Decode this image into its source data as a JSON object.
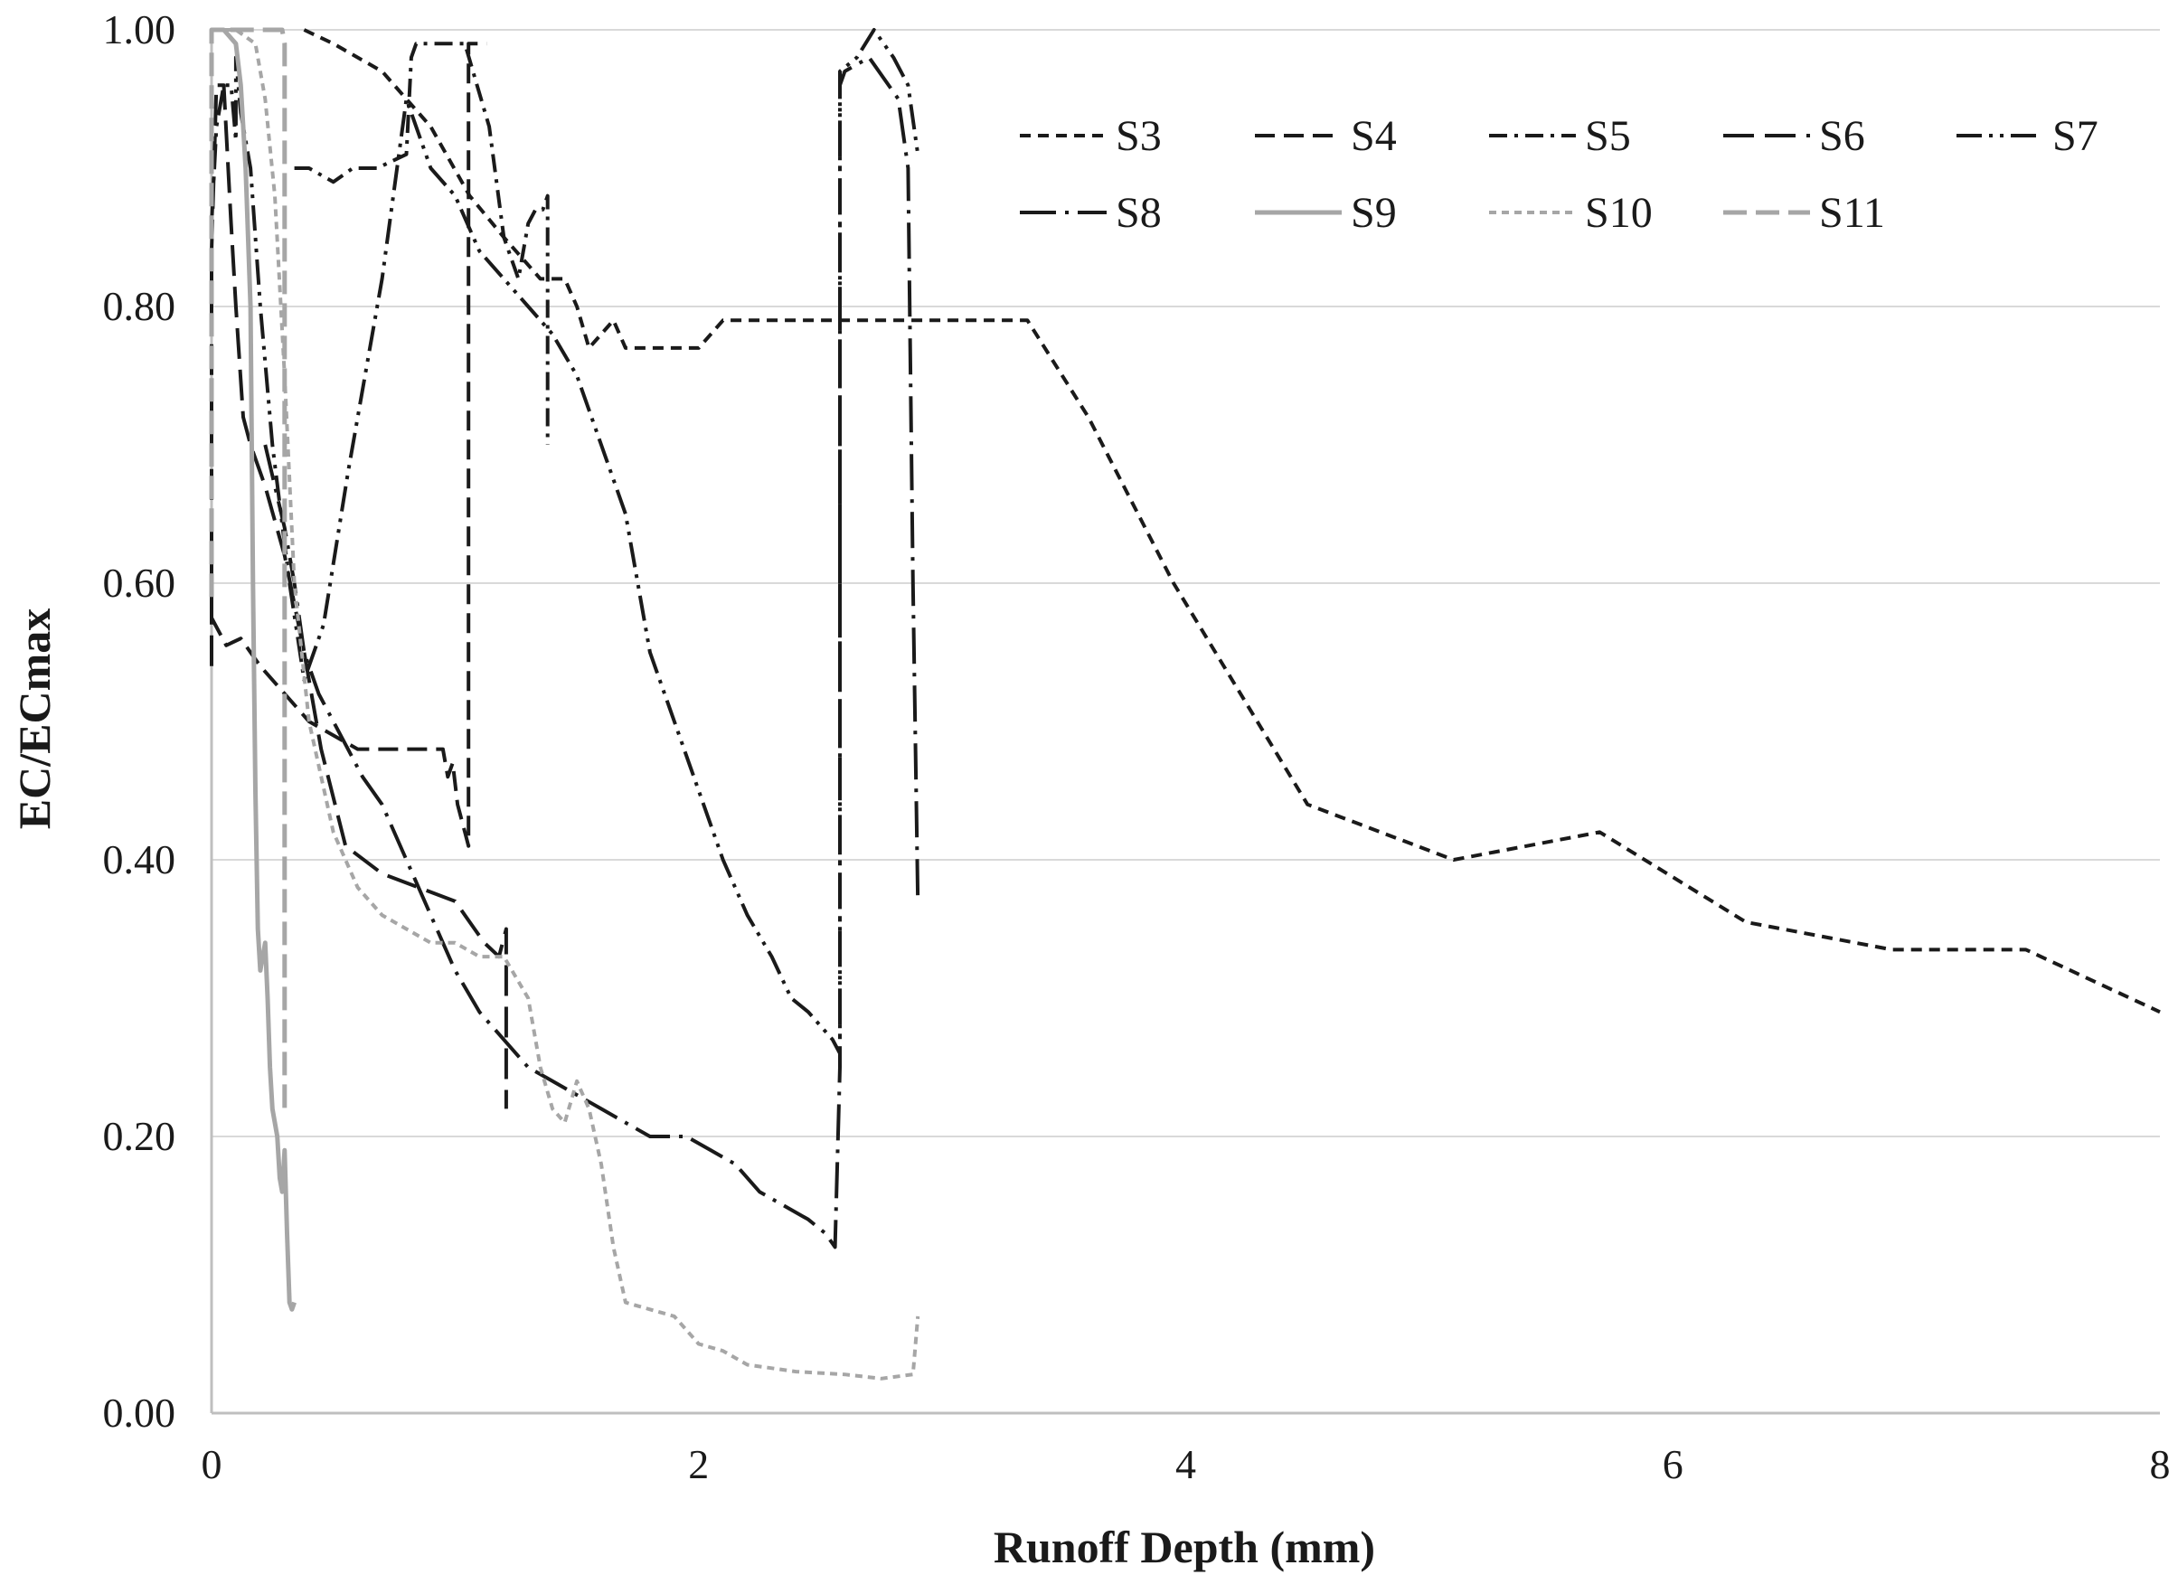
{
  "chart_data": {
    "type": "line",
    "title": "",
    "xlabel": "Runoff Depth (mm)",
    "ylabel": "EC/ECmax",
    "xlim": [
      0,
      8
    ],
    "ylim": [
      0,
      1
    ],
    "x_ticks": [
      0,
      2,
      4,
      6,
      8
    ],
    "x_tick_labels": [
      "0",
      "2",
      "4",
      "6",
      "8"
    ],
    "y_ticks": [
      0,
      0.2,
      0.4,
      0.6,
      0.8,
      1.0
    ],
    "y_tick_labels": [
      "0.00",
      "0.20",
      "0.40",
      "0.60",
      "0.80",
      "1.00"
    ],
    "grid": "horizontal",
    "legend_position": "top-right",
    "series": [
      {
        "name": "S3",
        "color": "#1a1a1a",
        "dash": "12,8",
        "width": 4,
        "x": [
          0.38,
          0.5,
          0.7,
          0.9,
          1.06,
          1.2,
          1.35,
          1.45,
          1.5,
          1.55,
          1.6,
          1.65,
          1.7,
          2.0,
          2.1,
          2.5,
          3.0,
          3.35,
          3.6,
          3.95,
          4.5,
          5.1,
          5.7,
          6.3,
          6.9,
          7.45,
          8.0
        ],
        "y": [
          1.0,
          0.99,
          0.97,
          0.93,
          0.88,
          0.85,
          0.82,
          0.82,
          0.8,
          0.77,
          0.78,
          0.79,
          0.77,
          0.77,
          0.79,
          0.79,
          0.79,
          0.79,
          0.72,
          0.6,
          0.44,
          0.4,
          0.42,
          0.355,
          0.335,
          0.335,
          0.29
        ]
      },
      {
        "name": "S4",
        "color": "#1a1a1a",
        "dash": "22,10",
        "width": 4,
        "x": [
          0.0,
          0.06,
          0.12,
          0.2,
          0.4,
          0.6,
          0.95,
          0.97,
          0.99,
          1.01,
          1.04,
          1.055,
          1.055,
          1.07,
          1.1,
          1.13
        ],
        "y": [
          0.575,
          0.555,
          0.56,
          0.54,
          0.5,
          0.48,
          0.48,
          0.46,
          0.47,
          0.44,
          0.42,
          0.41,
          0.99,
          0.99,
          0.99,
          0.99
        ]
      },
      {
        "name": "S5",
        "color": "#1a1a1a",
        "dash": "20,8,4,8",
        "width": 4,
        "x": [
          0.34,
          0.4,
          0.5,
          0.58,
          0.68,
          0.8,
          0.82,
          0.84,
          0.86,
          0.9,
          1.0,
          1.04,
          1.09,
          1.14,
          1.2,
          1.26,
          1.3,
          1.33,
          1.36,
          1.38,
          1.38,
          1.38
        ],
        "y": [
          0.9,
          0.9,
          0.89,
          0.9,
          0.9,
          0.91,
          0.98,
          0.99,
          0.99,
          0.99,
          0.99,
          0.99,
          0.96,
          0.93,
          0.85,
          0.82,
          0.86,
          0.87,
          0.87,
          0.88,
          0.85,
          0.7
        ]
      },
      {
        "name": "S6",
        "color": "#1a1a1a",
        "dash": "34,12",
        "width": 4,
        "x": [
          0.0,
          0.0,
          0.02,
          0.05,
          0.08,
          0.1,
          0.13,
          0.16,
          0.22,
          0.3,
          0.38,
          0.45,
          0.55,
          0.7,
          0.85,
          1.0,
          1.08,
          1.12,
          1.18,
          1.21,
          1.21,
          1.21,
          1.21
        ],
        "y": [
          0.54,
          0.84,
          0.96,
          0.96,
          0.86,
          0.8,
          0.72,
          0.7,
          0.67,
          0.62,
          0.55,
          0.48,
          0.41,
          0.39,
          0.38,
          0.37,
          0.35,
          0.34,
          0.33,
          0.35,
          0.32,
          0.28,
          0.22
        ]
      },
      {
        "name": "S7",
        "color": "#1a1a1a",
        "dash": "28,8,4,8,4,8",
        "width": 4,
        "x": [
          0.0,
          0.02,
          0.05,
          0.08,
          0.1,
          0.1,
          0.12,
          0.16,
          0.2,
          0.25,
          0.32,
          0.38,
          0.46,
          0.56,
          0.7,
          0.8,
          0.9,
          1.0,
          1.1,
          1.2,
          1.3,
          1.4,
          1.5,
          1.6,
          1.7,
          1.8,
          2.0,
          2.1,
          2.2,
          2.3,
          2.38,
          2.45,
          2.5,
          2.55,
          2.58,
          2.58,
          2.58,
          2.65,
          2.72,
          2.8,
          2.86,
          2.9
        ],
        "y": [
          0.86,
          0.93,
          0.96,
          0.96,
          0.92,
          0.98,
          0.94,
          0.9,
          0.8,
          0.7,
          0.6,
          0.53,
          0.57,
          0.68,
          0.82,
          0.95,
          0.9,
          0.88,
          0.84,
          0.82,
          0.8,
          0.78,
          0.75,
          0.7,
          0.65,
          0.55,
          0.45,
          0.4,
          0.36,
          0.33,
          0.3,
          0.29,
          0.28,
          0.27,
          0.26,
          0.96,
          0.97,
          0.98,
          1.0,
          0.98,
          0.96,
          0.91
        ]
      },
      {
        "name": "S8",
        "color": "#1a1a1a",
        "dash": "40,10,4,10",
        "width": 4,
        "x": [
          0.22,
          0.3,
          0.34,
          0.38,
          0.44,
          0.5,
          0.56,
          0.62,
          0.7,
          0.8,
          0.9,
          1.0,
          1.1,
          1.2,
          1.3,
          1.4,
          1.5,
          1.6,
          1.7,
          1.8,
          1.95,
          2.05,
          2.15,
          2.25,
          2.35,
          2.45,
          2.52,
          2.56,
          2.58,
          2.58,
          2.6,
          2.7,
          2.82,
          2.86,
          2.88,
          2.9
        ],
        "y": [
          0.7,
          0.64,
          0.6,
          0.55,
          0.52,
          0.5,
          0.48,
          0.46,
          0.44,
          0.4,
          0.36,
          0.32,
          0.29,
          0.27,
          0.25,
          0.24,
          0.23,
          0.22,
          0.21,
          0.2,
          0.2,
          0.19,
          0.18,
          0.16,
          0.15,
          0.14,
          0.13,
          0.12,
          0.25,
          0.96,
          0.97,
          0.98,
          0.95,
          0.9,
          0.6,
          0.37
        ]
      },
      {
        "name": "S9",
        "color": "#a6a6a6",
        "dash": "none",
        "width": 5,
        "x": [
          0.0,
          0.05,
          0.1,
          0.12,
          0.14,
          0.16,
          0.17,
          0.18,
          0.19,
          0.2,
          0.21,
          0.22,
          0.23,
          0.24,
          0.25,
          0.26,
          0.27,
          0.28,
          0.29,
          0.3,
          0.31,
          0.32,
          0.33,
          0.34
        ],
        "y": [
          1.0,
          1.0,
          0.99,
          0.96,
          0.9,
          0.8,
          0.6,
          0.45,
          0.35,
          0.32,
          0.33,
          0.34,
          0.3,
          0.25,
          0.22,
          0.21,
          0.2,
          0.17,
          0.16,
          0.19,
          0.13,
          0.08,
          0.075,
          0.08
        ]
      },
      {
        "name": "S10",
        "color": "#a6a6a6",
        "dash": "8,6",
        "width": 4,
        "x": [
          0.0,
          0.1,
          0.18,
          0.22,
          0.26,
          0.3,
          0.34,
          0.4,
          0.5,
          0.6,
          0.7,
          0.8,
          0.9,
          1.0,
          1.1,
          1.2,
          1.3,
          1.35,
          1.4,
          1.45,
          1.5,
          1.55,
          1.6,
          1.65,
          1.7,
          1.8,
          1.9,
          2.0,
          2.1,
          2.2,
          2.4,
          2.6,
          2.75,
          2.88,
          2.9
        ],
        "y": [
          1.0,
          1.0,
          0.99,
          0.95,
          0.88,
          0.75,
          0.6,
          0.5,
          0.42,
          0.38,
          0.36,
          0.35,
          0.34,
          0.34,
          0.33,
          0.33,
          0.3,
          0.25,
          0.22,
          0.21,
          0.24,
          0.22,
          0.18,
          0.12,
          0.08,
          0.075,
          0.07,
          0.05,
          0.045,
          0.035,
          0.03,
          0.028,
          0.025,
          0.028,
          0.07
        ]
      },
      {
        "name": "S11",
        "color": "#a6a6a6",
        "dash": "26,10",
        "width": 5,
        "x": [
          0.0,
          0.0,
          0.01,
          0.03,
          0.06,
          0.1,
          0.14,
          0.18,
          0.22,
          0.26,
          0.29,
          0.3,
          0.3,
          0.3
        ],
        "y": [
          0.59,
          1.0,
          1.0,
          1.0,
          1.0,
          1.0,
          1.0,
          1.0,
          1.0,
          1.0,
          1.0,
          0.99,
          0.6,
          0.22
        ]
      }
    ],
    "legend": [
      "S3",
      "S4",
      "S5",
      "S6",
      "S7",
      "S8",
      "S9",
      "S10",
      "S11"
    ]
  }
}
